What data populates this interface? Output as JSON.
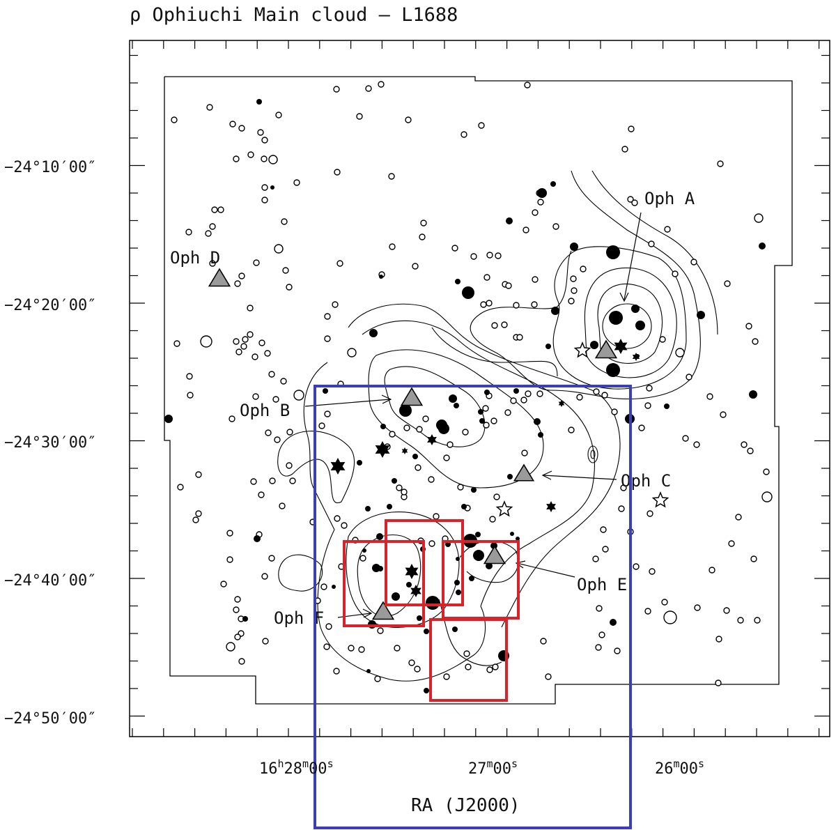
{
  "header": {
    "title": "ρ Ophiuchi Main cloud – L1688"
  },
  "axes": {
    "xlabel": "RA (J2000)",
    "ra_ticks": [
      {
        "h": "16",
        "hs": "h",
        "m": "28",
        "ms": "m",
        "s": "00",
        "ss": "s"
      },
      {
        "h": "",
        "hs": "",
        "m": "27",
        "ms": "m",
        "s": "00",
        "ss": "s"
      },
      {
        "h": "",
        "hs": "",
        "m": "26",
        "ms": "m",
        "s": "00",
        "ss": "s"
      }
    ],
    "dec_ticks": [
      "−24°10′00″",
      "−24°20′00″",
      "−24°30′00″",
      "−24°40′00″",
      "−24°50′00″"
    ]
  },
  "regions": [
    {
      "name": "Oph A"
    },
    {
      "name": "Oph B"
    },
    {
      "name": "Oph C"
    },
    {
      "name": "Oph D"
    },
    {
      "name": "Oph E"
    },
    {
      "name": "Oph F"
    }
  ],
  "colors": {
    "frame": "#000000",
    "blue_box": "#3a3fb8",
    "red_box": "#d9222a",
    "triangle_fill": "#9a9a9a"
  }
}
